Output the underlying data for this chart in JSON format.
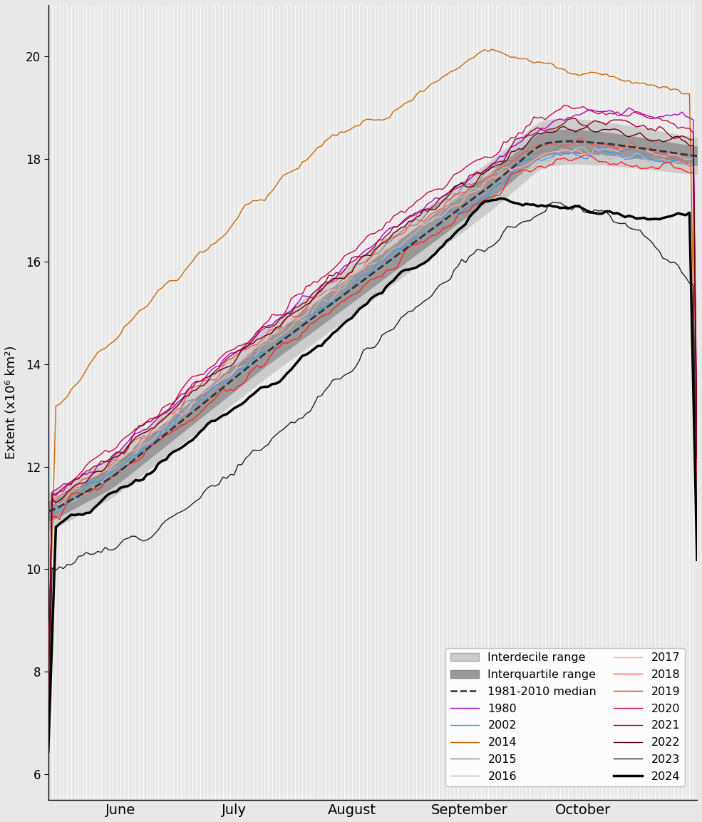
{
  "ylabel": "Extent (x10⁶ km²)",
  "xlim_days": [
    133,
    304
  ],
  "ylim": [
    5.5,
    21
  ],
  "yticks": [
    6,
    8,
    10,
    12,
    14,
    16,
    18,
    20
  ],
  "months": {
    "June": 152,
    "July": 182,
    "August": 213,
    "September": 244,
    "October": 274
  },
  "bg_color": "#e8e8e8",
  "vgrid_color": "#ffffff",
  "colors": {
    "1980": "#AA00CC",
    "2002": "#3399FF",
    "2014": "#CC6600",
    "2015": "#888888",
    "2016": "#BBBBBB",
    "2017": "#FFAAAA",
    "2018": "#FF5555",
    "2019": "#FF2222",
    "2020": "#CC0055",
    "2021": "#990022",
    "2022": "#660011",
    "2023": "#222222",
    "2024": "#000000"
  },
  "interdecile_color": "#cccccc",
  "interquartile_color": "#999999",
  "median_color": "#333333"
}
